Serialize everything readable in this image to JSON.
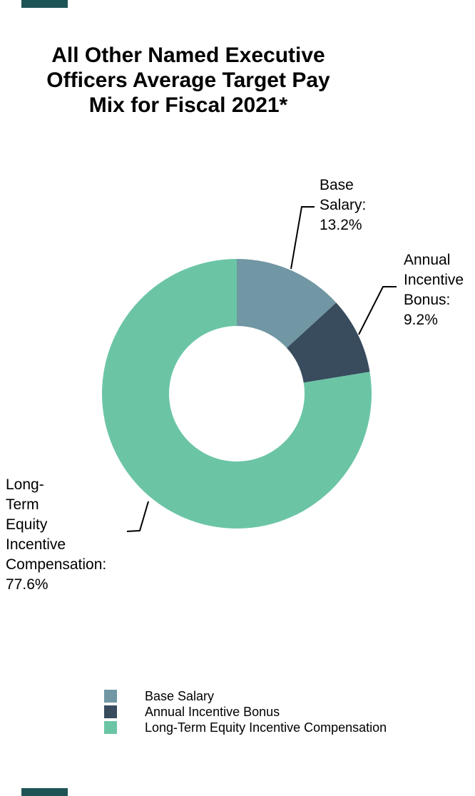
{
  "title": {
    "text": "All Other Named Executive\nOfficers Average Target Pay\nMix for Fiscal 2021*"
  },
  "chart_data": {
    "type": "pie",
    "subtype": "donut",
    "title": "All Other Named Executive Officers Average Target Pay Mix for Fiscal 2021*",
    "unit": "%",
    "start_angle_deg": 0,
    "direction": "clockwise",
    "inner_radius_ratio": 0.5,
    "legend_position": "bottom",
    "series": [
      {
        "name": "Base Salary",
        "value": 13.2,
        "color": "#7196a4",
        "callout_label": "Base Salary: 13.2%"
      },
      {
        "name": "Annual Incentive Bonus",
        "value": 9.2,
        "color": "#384c5e",
        "callout_label": "Annual Incentive Bonus: 9.2%"
      },
      {
        "name": "Long-Term Equity Incentive Compensation",
        "value": 77.6,
        "color": "#6bc5a5",
        "callout_label": "Long-Term Equity Incentive Compensation: 77.6%"
      }
    ]
  },
  "callouts": [
    {
      "id": "base-salary",
      "text": "Base\nSalary:\n13.2%"
    },
    {
      "id": "annual-incentive",
      "text": "Annual\nIncentive\nBonus:\n9.2%"
    },
    {
      "id": "long-term",
      "text": "Long-\nTerm\nEquity\nIncentive\nCompensation:\n77.6%"
    }
  ],
  "legend": {
    "items": [
      {
        "label": "Base Salary",
        "color": "#7196a4"
      },
      {
        "label": "Annual Incentive Bonus",
        "color": "#384c5e"
      },
      {
        "label": "Long-Term Equity Incentive Compensation",
        "color": "#6bc5a5"
      }
    ]
  },
  "decorations": {
    "edge_bar_color": "#1f5456"
  }
}
